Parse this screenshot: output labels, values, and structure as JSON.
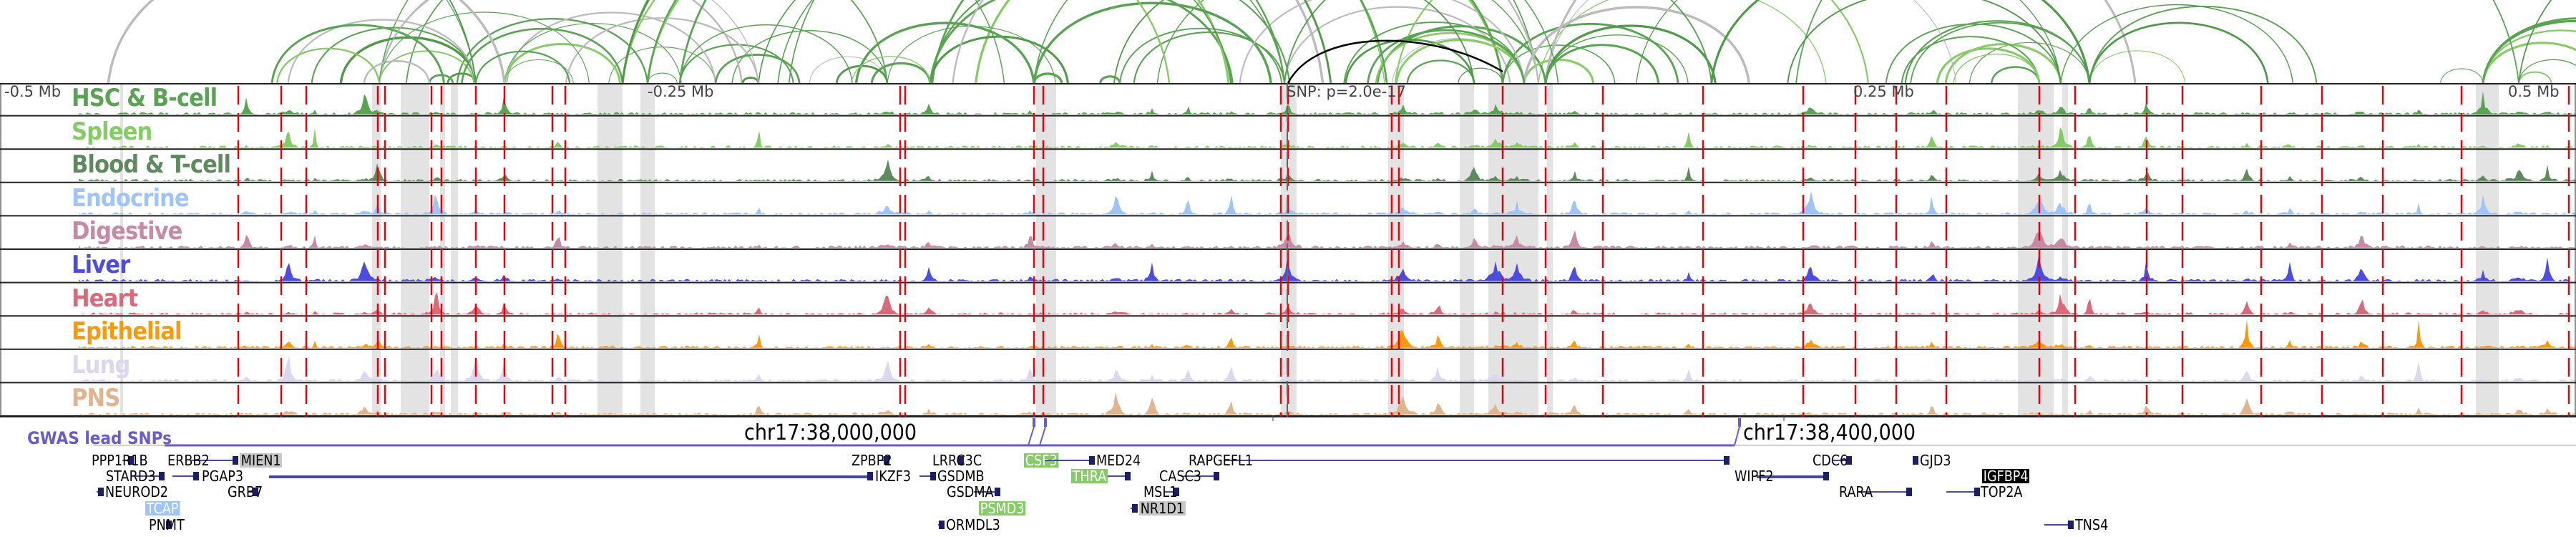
{
  "scale_labels": {
    "left": "-0.5 Mb",
    "left_mid": "-0.25 Mb",
    "snp": "SNP: p=2.0e-17",
    "right_mid": "0.25 Mb",
    "right": "0.5 Mb"
  },
  "tracks": [
    {
      "label": "HSC & B-cell",
      "color": "#58a452"
    },
    {
      "label": "Spleen",
      "color": "#86cc66"
    },
    {
      "label": "Blood & T-cell",
      "color": "#5e8a5e"
    },
    {
      "label": "Endocrine",
      "color": "#9ec4f8"
    },
    {
      "label": "Digestive",
      "color": "#c689a6"
    },
    {
      "label": "Liver",
      "color": "#4c4ce0"
    },
    {
      "label": "Heart",
      "color": "#d96a7a"
    },
    {
      "label": "Epithelial",
      "color": "#f89a0c"
    },
    {
      "label": "Lung",
      "color": "#dcd6ee"
    },
    {
      "label": "PNS",
      "color": "#dfb48f"
    }
  ],
  "gwas_label": "GWAS lead SNPs",
  "gwas_color": "#6a5acd",
  "coords": [
    "chr17:38,000,000",
    "chr17:38,400,000"
  ],
  "genes": {
    "PPP1R1B": "PPP1R1B",
    "STARD3": "STARD3",
    "NEUROD2": "NEUROD2",
    "TCAP": "TCAP",
    "PNMT": "PNMT",
    "ERBB2": "ERBB2",
    "MIEN1": "MIEN1",
    "PGAP3": "PGAP3",
    "GRB7": "GRB7",
    "IKZF3": "IKZF3",
    "ZPBP2": "ZPBP2",
    "LRRC3C": "LRRC3C",
    "GSDMB": "GSDMB",
    "GSDMA": "GSDMA",
    "PSMD3": "PSMD3",
    "ORMDL3": "ORMDL3",
    "CSF3": "CSF3",
    "MED24": "MED24",
    "THRA": "THRA",
    "NR1D1": "NR1D1",
    "MSL1": "MSL1",
    "CASC3": "CASC3",
    "RAPGEFL1": "RAPGEFL1",
    "WIPF2": "WIPF2",
    "CDC6": "CDC6",
    "RARA": "RARA",
    "GJD3": "GJD3",
    "IGFBP4": "IGFBP4",
    "TOP2A": "TOP2A",
    "TNS4": "TNS4"
  },
  "highlight_colors": {
    "blue": "#9ec4f8",
    "green": "#86cc66",
    "grey": "#c8c8c8",
    "black": "#000000"
  }
}
